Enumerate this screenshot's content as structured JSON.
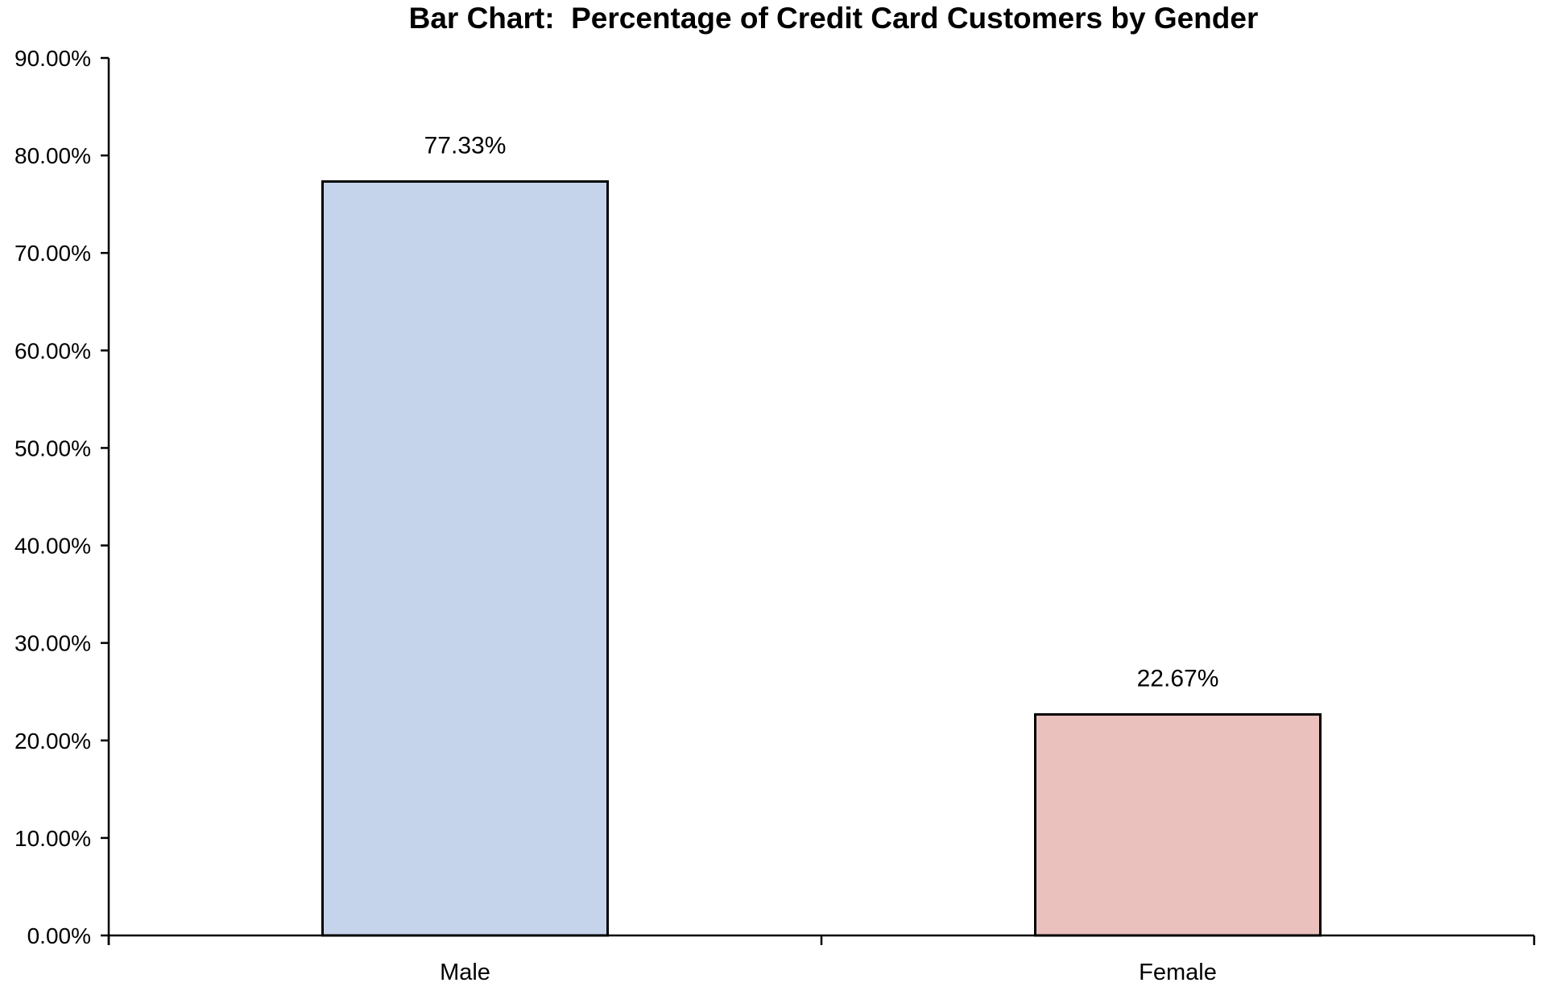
{
  "chart_data": {
    "type": "bar",
    "title": "Bar Chart:  Percentage of Credit Card Customers by Gender",
    "xlabel": "",
    "ylabel": "",
    "categories": [
      "Male",
      "Female"
    ],
    "values": [
      77.33,
      22.67
    ],
    "data_labels": [
      "77.33%",
      "22.67%"
    ],
    "colors": [
      "#c5d4ea",
      "#eac1bc"
    ],
    "ylim": [
      0,
      90
    ],
    "yticks": [
      0,
      10,
      20,
      30,
      40,
      50,
      60,
      70,
      80,
      90
    ],
    "ytick_labels": [
      "0.00%",
      "10.00%",
      "20.00%",
      "30.00%",
      "40.00%",
      "50.00%",
      "60.00%",
      "70.00%",
      "80.00%",
      "90.00%"
    ],
    "grid": false,
    "legend": "none"
  }
}
